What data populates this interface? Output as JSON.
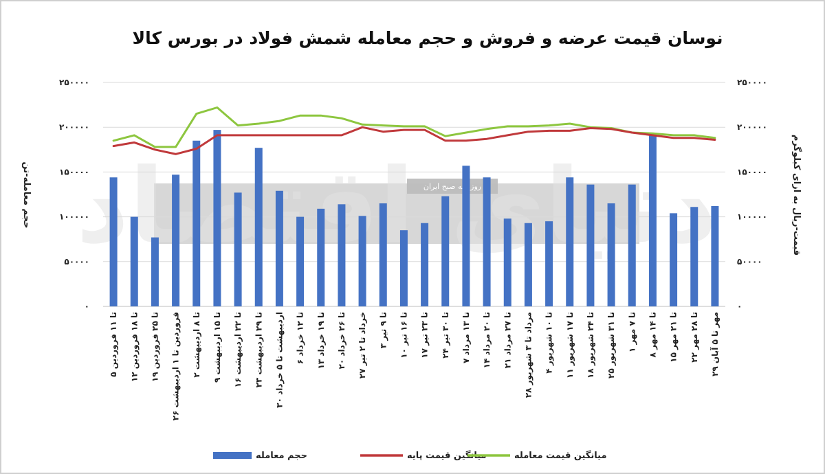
{
  "chart_data": {
    "type": "bar",
    "title": "نوسان قیمت عرضه و فروش و حجم معامله شمش فولاد در بورس کالا",
    "ylabel": "حجم معامله-تن",
    "y2label": "قیمت-ریال به ازای کیلوگرم",
    "ylim": [
      0,
      250000
    ],
    "y2lim": [
      0,
      250000
    ],
    "y_ticks": [
      "۰",
      "۵۰۰۰۰",
      "۱۰۰۰۰۰",
      "۱۵۰۰۰۰",
      "۲۰۰۰۰۰",
      "۲۵۰۰۰۰"
    ],
    "y_tick_values": [
      0,
      50000,
      100000,
      150000,
      200000,
      250000
    ],
    "grid": true,
    "legend_position": "bottom",
    "categories": [
      "۵ تا ۱۱ فروردین",
      "۱۲ تا ۱۸ فروردین",
      "۱۹ تا ۲۵ فروردین",
      "۲۶ فروردین تا ۱ اردیبهشت",
      "۲ تا ۸ اردیبهشت",
      "۹ تا ۱۵ اردیبهشت",
      "۱۶ تا ۲۲ اردیبهشت",
      "۲۳ تا ۲۹ اردیبهشت",
      "۳۰ اردیبهشت تا ۵ خرداد",
      "۶ تا ۱۲ خرداد",
      "۱۳ تا ۱۹ خرداد",
      "۲۰ تا ۲۶ خرداد",
      "۲۷ خرداد تا ۲ تیر",
      "۳ تا ۹ تیر",
      "۱۰ تا ۱۶ تیر",
      "۱۷ تا ۲۳ تیر",
      "۲۴ تا ۳۰ تیر",
      "۷ تا ۱۳ مرداد",
      "۱۴ تا ۲۰ مرداد",
      "۲۱ تا ۲۷ مرداد",
      "۲۸ مرداد تا ۳ شهریور",
      "۴ تا ۱۰ شهریور",
      "۱۱ تا ۱۷ شهریور",
      "۱۸ تا ۲۴ شهریور",
      "۲۵ تا ۳۱ شهریور",
      "۱ تا ۷ مهر",
      "۸ تا ۱۴ مهر",
      "۱۵ تا ۲۱ مهر",
      "۲۲ تا ۲۸ مهر",
      "۲۹ مهر تا ۵ آبان"
    ],
    "series": [
      {
        "name": "حجم معامله",
        "type": "bar",
        "axis": "left",
        "color": "#4472C4",
        "values": [
          144000,
          100000,
          77000,
          147000,
          185000,
          197000,
          127000,
          177000,
          129000,
          100000,
          109000,
          114000,
          101000,
          115000,
          85000,
          93000,
          123000,
          157000,
          144000,
          98000,
          93000,
          95000,
          144000,
          136000,
          115000,
          136000,
          191000,
          104000,
          111000,
          112000
        ]
      },
      {
        "name": "میانگین قیمت پایه",
        "type": "line",
        "axis": "right",
        "color": "#C0393B",
        "values": [
          179000,
          183000,
          175000,
          170000,
          176000,
          191000,
          191000,
          191000,
          191000,
          191000,
          191000,
          191000,
          200000,
          195000,
          197000,
          197000,
          185000,
          185000,
          187000,
          191000,
          195000,
          196000,
          196000,
          199000,
          198000,
          194000,
          191000,
          188000,
          188000,
          186000
        ]
      },
      {
        "name": "میانگین قیمت معامله",
        "type": "line",
        "axis": "right",
        "color": "#8DC63F",
        "values": [
          185000,
          191000,
          178000,
          178000,
          215000,
          222000,
          202000,
          204000,
          207000,
          213000,
          213000,
          210000,
          203000,
          202000,
          201000,
          201000,
          190000,
          194000,
          198000,
          201000,
          201000,
          202000,
          204000,
          200000,
          199000,
          194000,
          193000,
          191000,
          191000,
          188000
        ]
      }
    ],
    "watermark": {
      "tag": "روزنامه صبح ایران",
      "word": "دنیای اقتصاد"
    }
  }
}
